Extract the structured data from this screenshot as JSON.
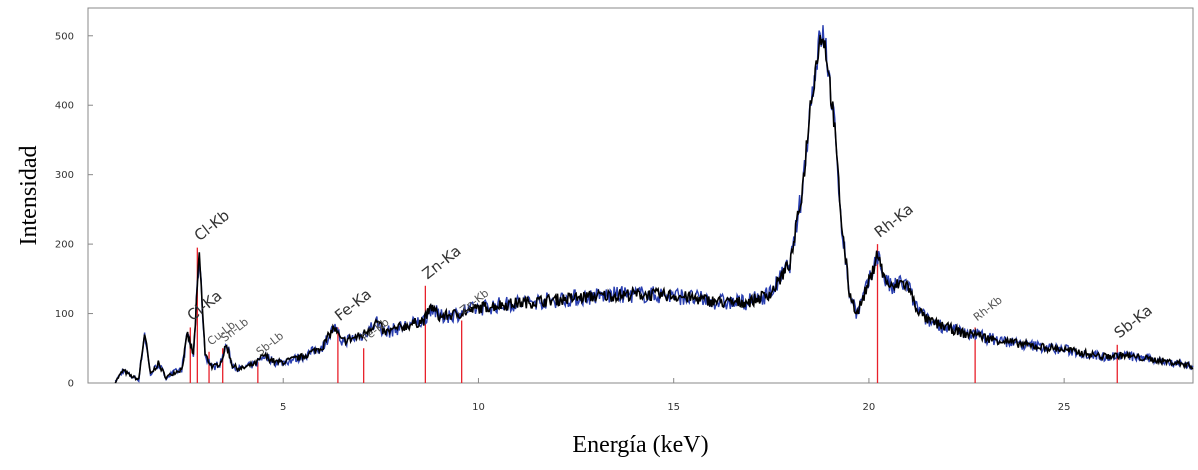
{
  "chart_data": {
    "type": "line",
    "title": "",
    "xlabel": "Energía (keV)",
    "ylabel": "Intensidad",
    "xlim": [
      0,
      28.3
    ],
    "ylim": [
      0,
      540
    ],
    "xticks": [
      5,
      10,
      15,
      20,
      25
    ],
    "yticks": [
      0,
      100,
      200,
      300,
      400,
      500
    ],
    "grid": false,
    "colors": {
      "spectrum_overlay": "#2a3fb0",
      "spectrum": "#000000",
      "lines": "#e8202a",
      "frame": "#888888"
    },
    "series": [
      {
        "x": [
          0.7,
          0.9,
          1.1,
          1.3,
          1.45,
          1.6,
          1.8,
          2.0,
          2.2,
          2.4,
          2.55,
          2.7,
          2.85,
          3.0,
          3.2,
          3.4,
          3.55,
          3.7,
          3.9,
          4.1,
          4.3,
          4.5,
          4.8,
          5.0,
          5.5,
          6.0,
          6.3,
          6.5,
          7.0,
          7.4,
          7.6,
          8.0,
          8.6,
          8.8,
          9.0,
          9.5,
          10.0,
          10.5,
          11.0,
          12.0,
          13.0,
          14.0,
          15.0,
          15.5,
          16.0,
          16.5,
          17.0,
          17.5,
          18.0,
          18.3,
          18.5,
          18.7,
          18.8,
          18.9,
          19.1,
          19.3,
          19.5,
          19.7,
          19.9,
          20.1,
          20.2,
          20.4,
          20.6,
          20.8,
          21.0,
          21.2,
          21.5,
          22.0,
          22.5,
          22.7,
          23.0,
          24.0,
          25.0,
          26.0,
          26.5,
          27.0,
          28.0,
          28.3
        ],
        "values": [
          2,
          18,
          10,
          5,
          72,
          12,
          28,
          8,
          15,
          20,
          70,
          40,
          185,
          40,
          22,
          30,
          55,
          25,
          20,
          24,
          28,
          40,
          30,
          30,
          38,
          52,
          80,
          60,
          68,
          88,
          72,
          80,
          90,
          110,
          95,
          100,
          108,
          112,
          115,
          120,
          125,
          128,
          126,
          122,
          118,
          115,
          118,
          130,
          175,
          280,
          400,
          480,
          505,
          480,
          380,
          230,
          130,
          100,
          130,
          160,
          190,
          150,
          135,
          145,
          140,
          110,
          90,
          80,
          70,
          72,
          65,
          55,
          48,
          38,
          40,
          36,
          28,
          24
        ]
      }
    ],
    "annotations": [
      {
        "label": "Cl-Kb",
        "x": 2.8,
        "y": 195
      },
      {
        "label": "Cl-Ka",
        "x": 2.62,
        "y": 80
      },
      {
        "label": "Cu-Lb",
        "x": 3.1,
        "y": 45
      },
      {
        "label": "Sn-Lb",
        "x": 3.45,
        "y": 50
      },
      {
        "label": "Sb-Lb",
        "x": 4.35,
        "y": 30
      },
      {
        "label": "Fe-Ka",
        "x": 6.4,
        "y": 80
      },
      {
        "label": "Fe-Kb",
        "x": 7.06,
        "y": 50
      },
      {
        "label": "Zn-Ka",
        "x": 8.64,
        "y": 140
      },
      {
        "label": "Zn-Kb",
        "x": 9.57,
        "y": 90
      },
      {
        "label": "Rh-Ka",
        "x": 20.22,
        "y": 200
      },
      {
        "label": "Rh-Kb",
        "x": 22.72,
        "y": 80
      },
      {
        "label": "Sb-Ka",
        "x": 26.36,
        "y": 55
      }
    ]
  }
}
